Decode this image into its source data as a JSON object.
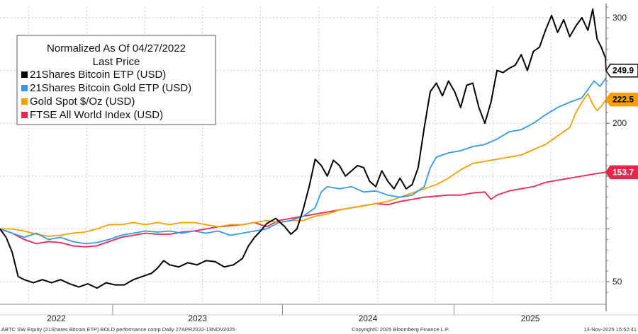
{
  "chart_data": {
    "type": "line",
    "title": "Normalized As Of 04/27/2022",
    "subtitle": "Last Price",
    "x_labels": [
      "2022",
      "2023",
      "2024",
      "2025"
    ],
    "y_ticks": [
      50,
      100,
      150,
      200,
      250,
      300
    ],
    "y_tick_labels": [
      "50",
      "",
      "",
      "200",
      "",
      "300"
    ],
    "ylim": [
      30,
      310
    ],
    "legend_position": "top-left",
    "grid": true,
    "series": [
      {
        "name": "21Shares Bitcoin ETP (USD)",
        "color": "#000000",
        "last_label": "249.9",
        "last_value": 249.9,
        "label_text_color": "#000000",
        "points": [
          [
            0.0,
            100
          ],
          [
            0.01,
            92
          ],
          [
            0.02,
            78
          ],
          [
            0.03,
            55
          ],
          [
            0.04,
            52
          ],
          [
            0.055,
            49
          ],
          [
            0.07,
            52
          ],
          [
            0.085,
            49
          ],
          [
            0.1,
            52
          ],
          [
            0.115,
            48
          ],
          [
            0.13,
            45
          ],
          [
            0.145,
            48
          ],
          [
            0.16,
            44
          ],
          [
            0.175,
            49
          ],
          [
            0.19,
            47
          ],
          [
            0.205,
            47
          ],
          [
            0.22,
            52
          ],
          [
            0.235,
            55
          ],
          [
            0.25,
            58
          ],
          [
            0.26,
            63
          ],
          [
            0.27,
            70
          ],
          [
            0.28,
            66
          ],
          [
            0.295,
            64
          ],
          [
            0.31,
            68
          ],
          [
            0.325,
            66
          ],
          [
            0.34,
            70
          ],
          [
            0.355,
            69
          ],
          [
            0.37,
            64
          ],
          [
            0.385,
            66
          ],
          [
            0.4,
            72
          ],
          [
            0.41,
            84
          ],
          [
            0.42,
            92
          ],
          [
            0.43,
            98
          ],
          [
            0.44,
            105
          ],
          [
            0.455,
            110
          ],
          [
            0.47,
            102
          ],
          [
            0.48,
            95
          ],
          [
            0.49,
            100
          ],
          [
            0.5,
            118
          ],
          [
            0.51,
            140
          ],
          [
            0.52,
            166
          ],
          [
            0.53,
            160
          ],
          [
            0.54,
            150
          ],
          [
            0.55,
            165
          ],
          [
            0.56,
            160
          ],
          [
            0.57,
            150
          ],
          [
            0.58,
            155
          ],
          [
            0.59,
            160
          ],
          [
            0.6,
            158
          ],
          [
            0.61,
            145
          ],
          [
            0.62,
            140
          ],
          [
            0.63,
            155
          ],
          [
            0.64,
            145
          ],
          [
            0.65,
            138
          ],
          [
            0.66,
            148
          ],
          [
            0.67,
            138
          ],
          [
            0.68,
            142
          ],
          [
            0.69,
            158
          ],
          [
            0.7,
            196
          ],
          [
            0.71,
            230
          ],
          [
            0.72,
            238
          ],
          [
            0.73,
            226
          ],
          [
            0.74,
            240
          ],
          [
            0.75,
            230
          ],
          [
            0.76,
            215
          ],
          [
            0.77,
            236
          ],
          [
            0.78,
            238
          ],
          [
            0.79,
            215
          ],
          [
            0.8,
            200
          ],
          [
            0.81,
            220
          ],
          [
            0.82,
            250
          ],
          [
            0.83,
            248
          ],
          [
            0.84,
            252
          ],
          [
            0.85,
            255
          ],
          [
            0.86,
            265
          ],
          [
            0.87,
            250
          ],
          [
            0.88,
            268
          ],
          [
            0.89,
            272
          ],
          [
            0.9,
            288
          ],
          [
            0.91,
            302
          ],
          [
            0.92,
            286
          ],
          [
            0.93,
            298
          ],
          [
            0.94,
            282
          ],
          [
            0.95,
            292
          ],
          [
            0.96,
            300
          ],
          [
            0.97,
            288
          ],
          [
            0.978,
            308
          ],
          [
            0.985,
            280
          ],
          [
            0.992,
            272
          ],
          [
            0.999,
            262
          ],
          [
            1.0,
            249.9
          ]
        ]
      },
      {
        "name": "21Shares Bitcoin Gold ETP (USD)",
        "color": "#3399ee",
        "last_label": "",
        "last_value": 243,
        "label_text_color": "#000000",
        "points": [
          [
            0.0,
            100
          ],
          [
            0.02,
            96
          ],
          [
            0.04,
            92
          ],
          [
            0.06,
            96
          ],
          [
            0.08,
            90
          ],
          [
            0.1,
            92
          ],
          [
            0.12,
            88
          ],
          [
            0.14,
            86
          ],
          [
            0.16,
            87
          ],
          [
            0.18,
            90
          ],
          [
            0.2,
            94
          ],
          [
            0.22,
            96
          ],
          [
            0.24,
            98
          ],
          [
            0.26,
            97
          ],
          [
            0.28,
            98
          ],
          [
            0.3,
            96
          ],
          [
            0.32,
            98
          ],
          [
            0.34,
            96
          ],
          [
            0.36,
            98
          ],
          [
            0.38,
            94
          ],
          [
            0.4,
            96
          ],
          [
            0.42,
            98
          ],
          [
            0.44,
            100
          ],
          [
            0.46,
            106
          ],
          [
            0.48,
            108
          ],
          [
            0.5,
            112
          ],
          [
            0.52,
            120
          ],
          [
            0.53,
            135
          ],
          [
            0.54,
            140
          ],
          [
            0.56,
            138
          ],
          [
            0.58,
            140
          ],
          [
            0.6,
            135
          ],
          [
            0.62,
            136
          ],
          [
            0.64,
            132
          ],
          [
            0.66,
            130
          ],
          [
            0.68,
            132
          ],
          [
            0.7,
            140
          ],
          [
            0.71,
            158
          ],
          [
            0.72,
            168
          ],
          [
            0.74,
            172
          ],
          [
            0.76,
            174
          ],
          [
            0.78,
            178
          ],
          [
            0.8,
            180
          ],
          [
            0.82,
            185
          ],
          [
            0.84,
            192
          ],
          [
            0.86,
            194
          ],
          [
            0.88,
            200
          ],
          [
            0.9,
            208
          ],
          [
            0.92,
            215
          ],
          [
            0.94,
            220
          ],
          [
            0.96,
            224
          ],
          [
            0.97,
            232
          ],
          [
            0.98,
            240
          ],
          [
            0.99,
            235
          ],
          [
            1.0,
            243
          ]
        ]
      },
      {
        "name": "Gold Spot $/Oz (USD)",
        "color": "#f5a000",
        "last_label": "222.5",
        "last_value": 222.5,
        "label_text_color": "#000000",
        "points": [
          [
            0.0,
            100
          ],
          [
            0.02,
            100
          ],
          [
            0.04,
            98
          ],
          [
            0.06,
            95
          ],
          [
            0.08,
            93
          ],
          [
            0.1,
            94
          ],
          [
            0.12,
            96
          ],
          [
            0.14,
            97
          ],
          [
            0.16,
            100
          ],
          [
            0.18,
            104
          ],
          [
            0.2,
            104
          ],
          [
            0.22,
            106
          ],
          [
            0.24,
            104
          ],
          [
            0.26,
            106
          ],
          [
            0.28,
            104
          ],
          [
            0.3,
            106
          ],
          [
            0.32,
            106
          ],
          [
            0.34,
            104
          ],
          [
            0.36,
            102
          ],
          [
            0.38,
            104
          ],
          [
            0.4,
            104
          ],
          [
            0.42,
            106
          ],
          [
            0.44,
            108
          ],
          [
            0.46,
            106
          ],
          [
            0.48,
            108
          ],
          [
            0.5,
            108
          ],
          [
            0.52,
            112
          ],
          [
            0.54,
            114
          ],
          [
            0.56,
            118
          ],
          [
            0.58,
            120
          ],
          [
            0.6,
            122
          ],
          [
            0.62,
            124
          ],
          [
            0.64,
            126
          ],
          [
            0.66,
            130
          ],
          [
            0.68,
            134
          ],
          [
            0.7,
            138
          ],
          [
            0.72,
            142
          ],
          [
            0.74,
            148
          ],
          [
            0.76,
            156
          ],
          [
            0.78,
            162
          ],
          [
            0.8,
            164
          ],
          [
            0.82,
            166
          ],
          [
            0.84,
            168
          ],
          [
            0.86,
            170
          ],
          [
            0.88,
            175
          ],
          [
            0.9,
            180
          ],
          [
            0.92,
            188
          ],
          [
            0.94,
            196
          ],
          [
            0.95,
            210
          ],
          [
            0.96,
            220
          ],
          [
            0.97,
            228
          ],
          [
            0.978,
            218
          ],
          [
            0.985,
            212
          ],
          [
            0.992,
            216
          ],
          [
            1.0,
            222.5
          ]
        ]
      },
      {
        "name": "FTSE All World Index (USD)",
        "color": "#e8254a",
        "last_label": "153.7",
        "last_value": 153.7,
        "label_text_color": "#ffffff",
        "points": [
          [
            0.0,
            100
          ],
          [
            0.02,
            96
          ],
          [
            0.04,
            90
          ],
          [
            0.06,
            86
          ],
          [
            0.08,
            88
          ],
          [
            0.1,
            87
          ],
          [
            0.12,
            84
          ],
          [
            0.14,
            83
          ],
          [
            0.16,
            84
          ],
          [
            0.18,
            88
          ],
          [
            0.2,
            92
          ],
          [
            0.22,
            94
          ],
          [
            0.24,
            96
          ],
          [
            0.26,
            95
          ],
          [
            0.28,
            95
          ],
          [
            0.3,
            97
          ],
          [
            0.32,
            98
          ],
          [
            0.34,
            100
          ],
          [
            0.36,
            102
          ],
          [
            0.38,
            103
          ],
          [
            0.4,
            104
          ],
          [
            0.42,
            106
          ],
          [
            0.44,
            102
          ],
          [
            0.46,
            108
          ],
          [
            0.48,
            110
          ],
          [
            0.5,
            112
          ],
          [
            0.52,
            114
          ],
          [
            0.54,
            116
          ],
          [
            0.56,
            118
          ],
          [
            0.58,
            120
          ],
          [
            0.6,
            122
          ],
          [
            0.62,
            124
          ],
          [
            0.64,
            123
          ],
          [
            0.66,
            126
          ],
          [
            0.68,
            128
          ],
          [
            0.7,
            130
          ],
          [
            0.72,
            131
          ],
          [
            0.74,
            132
          ],
          [
            0.76,
            132
          ],
          [
            0.78,
            134
          ],
          [
            0.8,
            135
          ],
          [
            0.81,
            128
          ],
          [
            0.82,
            132
          ],
          [
            0.84,
            136
          ],
          [
            0.86,
            138
          ],
          [
            0.88,
            140
          ],
          [
            0.9,
            144
          ],
          [
            0.92,
            146
          ],
          [
            0.94,
            148
          ],
          [
            0.96,
            150
          ],
          [
            0.98,
            152
          ],
          [
            1.0,
            153.7
          ]
        ]
      }
    ]
  },
  "footer": {
    "left": "ABTC SW Equity (21Shares Bitcoin ETP) BOLD performance comp Daily 27APR2022-13NOV2025",
    "center": "Copyright© 2025 Bloomberg Finance L.P.",
    "right": "13-Nov-2025 15:52:41"
  }
}
